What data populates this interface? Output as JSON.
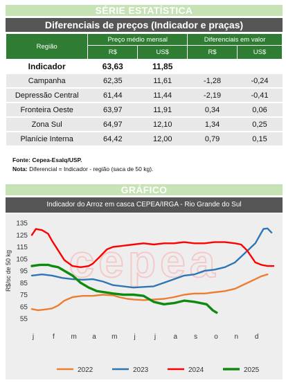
{
  "stats_banner": "SÉRIE ESTATÍSTICA",
  "table_title": "Diferenciais de preços (Indicador e praças)",
  "table": {
    "col_regiao": "Região",
    "col_preco": "Preço médio mensal",
    "col_diff": "Diferenciais em valor",
    "sub_rs": "R$",
    "sub_us": "US$",
    "indicator": {
      "name": "Indicador",
      "rs": "63,63",
      "us": "11,85"
    },
    "rows": [
      {
        "name": "Campanha",
        "rs": "62,35",
        "us": "11,61",
        "d_rs": "-1,28",
        "d_us": "-0,24"
      },
      {
        "name": "Depressão Central",
        "rs": "61,44",
        "us": "11,44",
        "d_rs": "-2,19",
        "d_us": "-0,41"
      },
      {
        "name": "Fronteira Oeste",
        "rs": "63,97",
        "us": "11,91",
        "d_rs": "0,34",
        "d_us": "0,06"
      },
      {
        "name": "Zona Sul",
        "rs": "64,97",
        "us": "12,10",
        "d_rs": "1,34",
        "d_us": "0,25"
      },
      {
        "name": "Planície Interna",
        "rs": "64,42",
        "us": "12,00",
        "d_rs": "0,79",
        "d_us": "0,15"
      }
    ]
  },
  "footnote_source_label": "Fonte: Cepea-Esalq/USP.",
  "footnote_note_label": "Nota:",
  "footnote_note_text": " Diferencial = Indicador - região (saca de 50 kg).",
  "chart_banner": "GRÁFICO",
  "chart_title": "Indicador do Arroz em casca CEPEA/IRGA - Rio Grande do Sul",
  "watermark": "cepea",
  "colors": {
    "2022": "#ed7d31",
    "2023": "#2e75b6",
    "2024": "#ff0000",
    "2025": "#0e8a0e",
    "banner": "#c5e3b4",
    "header_green": "#2e7d32"
  },
  "chart_data": {
    "type": "line",
    "title": "Indicador do Arroz em casca CEPEA/IRGA - Rio Grande do Sul",
    "ylabel": "R$/sc de 50 kg",
    "xlabel": "",
    "ylim": [
      55,
      135
    ],
    "yticks": [
      55,
      65,
      75,
      85,
      95,
      105,
      115,
      125,
      135
    ],
    "month_labels": [
      "j",
      "f",
      "m",
      "a",
      "m",
      "j",
      "j",
      "a",
      "s",
      "o",
      "n",
      "d"
    ],
    "grid": false,
    "legend": "bottom",
    "series": [
      {
        "name": "2022",
        "color": "#ed7d31",
        "width": 2,
        "x": [
          0,
          0.3,
          0.6,
          1.0,
          1.3,
          1.6,
          2.0,
          2.5,
          3.0,
          3.5,
          4.0,
          4.3,
          4.7,
          5.0,
          5.5,
          6.0,
          6.5,
          7.0,
          7.5,
          8.0,
          8.5,
          9.0,
          9.5,
          10.0,
          10.5,
          11.0,
          11.3,
          11.6
        ],
        "values": [
          63,
          62,
          62.5,
          63.5,
          66,
          70,
          73,
          74,
          74,
          75,
          74.5,
          73,
          71.5,
          71,
          70.5,
          71,
          71.5,
          73,
          75,
          76,
          76,
          77,
          78,
          80,
          84,
          88,
          90.5,
          92
        ]
      },
      {
        "name": "2023",
        "color": "#2e75b6",
        "width": 2,
        "x": [
          0,
          0.5,
          1.0,
          1.5,
          2.0,
          2.5,
          3.0,
          3.5,
          4.0,
          4.5,
          5.0,
          5.5,
          6.0,
          6.5,
          7.0,
          7.5,
          8.0,
          8.5,
          9.0,
          9.5,
          10.0,
          10.5,
          11.0,
          11.2,
          11.4,
          11.6,
          11.8
        ],
        "values": [
          91,
          92,
          91,
          89,
          88,
          87.5,
          88,
          86,
          83,
          82,
          81,
          81.5,
          82,
          85,
          88,
          91,
          92,
          95,
          96,
          98,
          102,
          110,
          118,
          124,
          130,
          130.5,
          127
        ]
      },
      {
        "name": "2024",
        "color": "#ff0000",
        "width": 2,
        "x": [
          0,
          0.2,
          0.5,
          0.8,
          1.0,
          1.3,
          1.6,
          2.0,
          2.4,
          2.8,
          3.0,
          3.3,
          3.7,
          4.0,
          4.5,
          5.0,
          5.5,
          6.0,
          6.5,
          7.0,
          7.5,
          8.0,
          8.5,
          9.0,
          9.5,
          10.0,
          10.3,
          10.6,
          11.0,
          11.3,
          11.6,
          11.9
        ],
        "values": [
          125,
          130,
          129,
          126,
          120,
          112,
          104,
          99,
          98,
          99,
          101,
          106,
          113,
          115,
          116,
          117,
          118,
          117,
          118,
          118,
          119,
          118,
          118,
          119,
          119,
          118,
          117,
          112,
          102,
          100,
          99,
          99
        ]
      },
      {
        "name": "2025",
        "color": "#0e8a0e",
        "width": 3,
        "x": [
          0,
          0.4,
          0.8,
          1.0,
          1.3,
          1.6,
          2.0,
          2.4,
          2.8,
          3.2,
          3.6,
          4.0,
          4.5,
          5.0,
          5.5,
          6.0,
          6.5,
          7.0,
          7.5,
          8.0,
          8.3,
          8.6,
          8.9,
          9.1
        ],
        "values": [
          99,
          100,
          100,
          99,
          98,
          95,
          91,
          85,
          81,
          78,
          77,
          76,
          75,
          75,
          74,
          69,
          67,
          68,
          70,
          69,
          68,
          67,
          62,
          60
        ]
      }
    ]
  }
}
